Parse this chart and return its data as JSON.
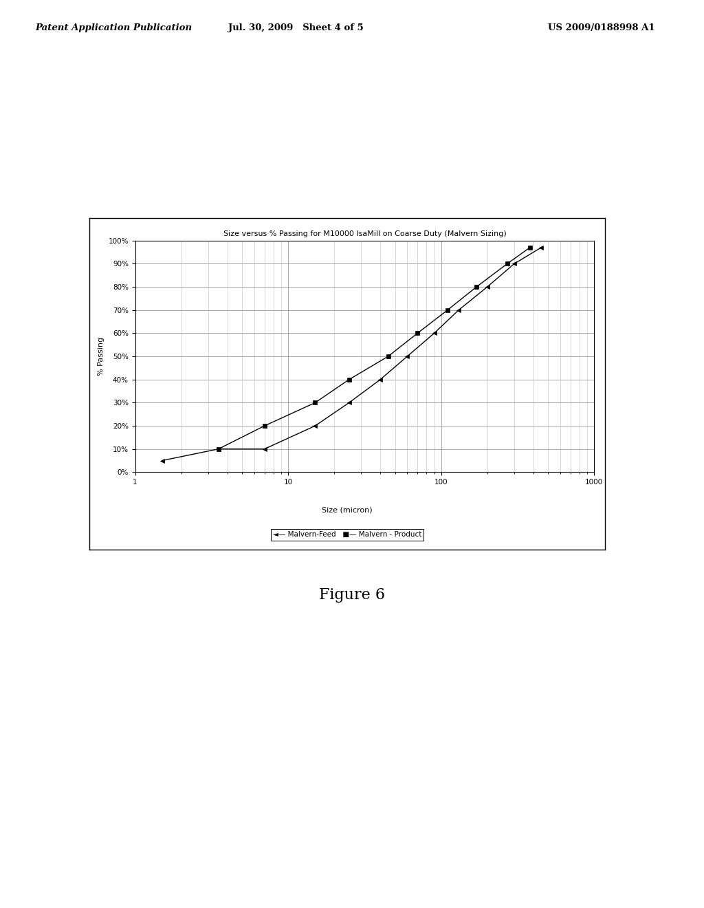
{
  "title": "Size versus % Passing for M10000 IsaMill on Coarse Duty (Malvern Sizing)",
  "xlabel": "Size (micron)",
  "ylabel": "% Passing",
  "xlim": [
    1,
    1000
  ],
  "ylim": [
    0,
    1.0
  ],
  "yticks": [
    0,
    0.1,
    0.2,
    0.3,
    0.4,
    0.5,
    0.6,
    0.7,
    0.8,
    0.9,
    1.0
  ],
  "ytick_labels": [
    "0%",
    "10%",
    "20%",
    "30%",
    "40%",
    "50%",
    "60%",
    "70%",
    "80%",
    "90%",
    "100%"
  ],
  "feed_x": [
    1.5,
    3.5,
    7.0,
    15.0,
    25.0,
    40.0,
    60.0,
    90.0,
    130.0,
    200.0,
    300.0,
    450.0
  ],
  "feed_y": [
    0.05,
    0.1,
    0.1,
    0.2,
    0.3,
    0.4,
    0.5,
    0.6,
    0.7,
    0.8,
    0.9,
    0.97
  ],
  "product_x": [
    3.5,
    7.0,
    15.0,
    25.0,
    45.0,
    70.0,
    110.0,
    170.0,
    270.0,
    380.0
  ],
  "product_y": [
    0.1,
    0.2,
    0.3,
    0.4,
    0.5,
    0.6,
    0.7,
    0.8,
    0.9,
    0.97
  ],
  "feed_label": "Malvern-Feed",
  "product_label": "Malvern - Product",
  "line_color": "#000000",
  "title_fontsize": 8,
  "label_fontsize": 8,
  "tick_fontsize": 7.5,
  "legend_fontsize": 7.5,
  "figure_width": 10.24,
  "figure_height": 13.2,
  "header_text_left": "Patent Application Publication",
  "header_text_mid": "Jul. 30, 2009   Sheet 4 of 5",
  "header_text_right": "US 2009/0188998 A1",
  "figure_caption": "Figure 6"
}
